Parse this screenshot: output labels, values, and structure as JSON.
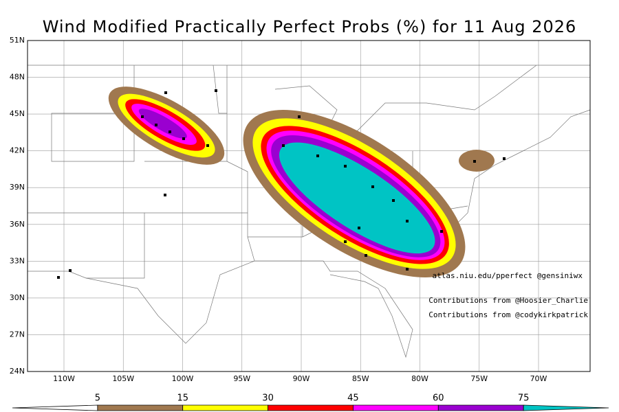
{
  "title": "Wind Modified Practically Perfect Probs (%) for 11 Aug 2026",
  "lat_labels": [
    "51N",
    "48N",
    "45N",
    "42N",
    "39N",
    "36N",
    "33N",
    "30N",
    "27N",
    "24N"
  ],
  "lon_labels": [
    "110W",
    "105W",
    "100W",
    "95W",
    "90W",
    "85W",
    "80W",
    "75W",
    "70W"
  ],
  "credits": [
    "atlas.niu.edu/pperfect @gensiniwx",
    "Contributions from @Hoosier_Charlie",
    "Contributions from @codykirkpatrick"
  ],
  "colorbar": {
    "labels": [
      "5",
      "15",
      "30",
      "45",
      "60",
      "75"
    ],
    "colors": [
      "#ffffff",
      "#a0784f",
      "#ffff00",
      "#ff0000",
      "#ff00ff",
      "#9a00d0",
      "#00c4c4"
    ]
  }
}
